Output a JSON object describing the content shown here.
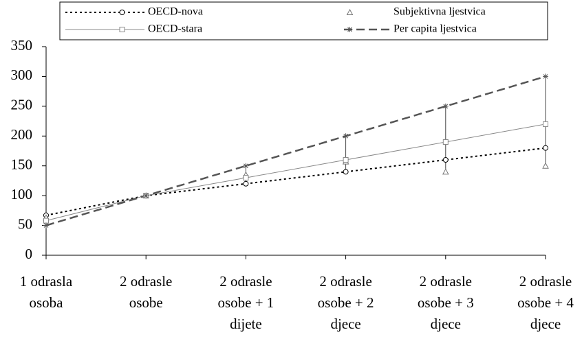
{
  "chart_data": {
    "type": "line",
    "categories": [
      [
        "1 odrasla",
        "osoba"
      ],
      [
        "2 odrasle",
        "osobe"
      ],
      [
        "2 odrasle",
        "osobe + 1",
        "dijete"
      ],
      [
        "2 odrasle",
        "osobe + 2",
        "djece"
      ],
      [
        "2 odrasle",
        "osobe + 3",
        "djece"
      ],
      [
        "2 odrasle",
        "osobe + 4",
        "djece"
      ]
    ],
    "series": [
      {
        "name": "OECD-nova",
        "color": "#000000",
        "style": "dotted",
        "marker": "circle",
        "values": [
          67,
          100,
          120,
          140,
          160,
          180
        ]
      },
      {
        "name": "Subjektivna ljestvica",
        "color": "#777777",
        "style": "none",
        "marker": "triangle",
        "values": [
          63,
          100,
          135,
          157,
          140,
          150
        ]
      },
      {
        "name": "OECD-stara",
        "color": "#888888",
        "style": "solid",
        "marker": "square",
        "values": [
          58,
          100,
          130,
          160,
          190,
          220
        ]
      },
      {
        "name": "Per capita ljestvica",
        "color": "#555555",
        "style": "dashed",
        "marker": "star",
        "values": [
          50,
          100,
          150,
          200,
          250,
          300
        ]
      }
    ],
    "ylim": [
      0,
      350
    ],
    "yticks": [
      0,
      50,
      100,
      150,
      200,
      250,
      300,
      350
    ],
    "hilo_lines": true,
    "legend": "top"
  }
}
